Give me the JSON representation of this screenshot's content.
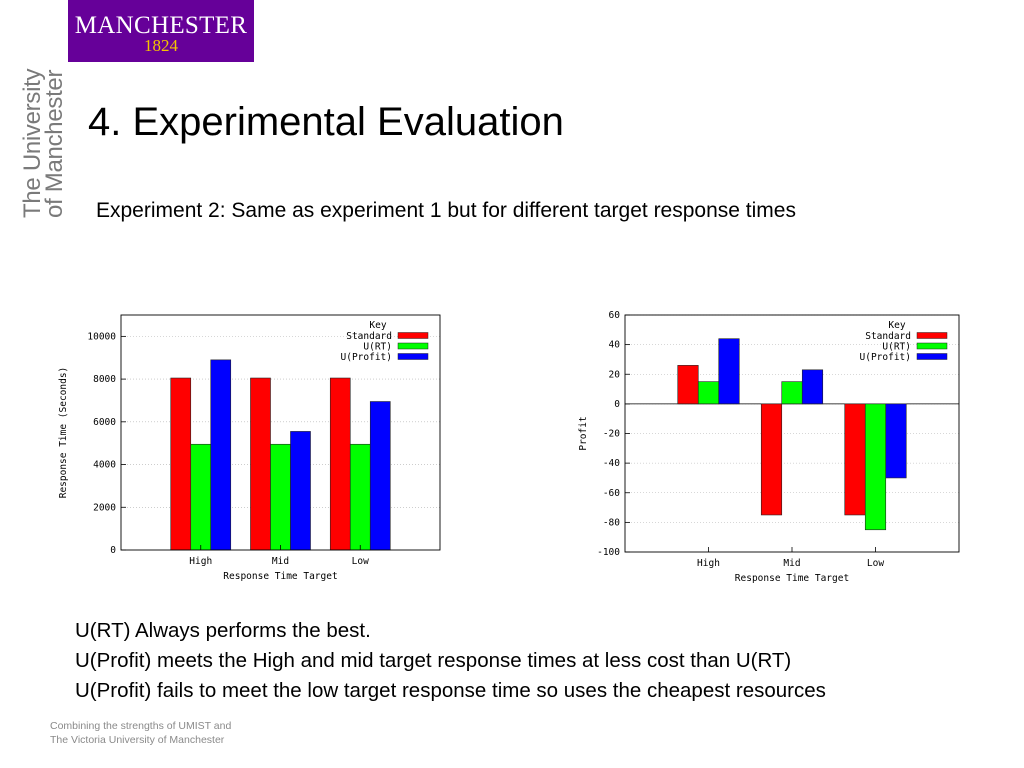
{
  "logo": {
    "line1": "MANCHESTER",
    "line2": "1824"
  },
  "university_text": {
    "line1": "The University",
    "line2": "of Manchester"
  },
  "slide": {
    "title": "4. Experimental Evaluation",
    "subtitle": "Experiment 2: Same as experiment 1 but for different target response times",
    "bullets": [
      "U(RT) Always performs the best.",
      "U(Profit) meets the High and mid target response times at less cost than U(RT)",
      "U(Profit) fails to meet the low target response time so uses the cheapest resources"
    ]
  },
  "footer": {
    "line1": "Combining the strengths of UMIST and",
    "line2": "The Victoria University of Manchester"
  },
  "chart_data": [
    {
      "type": "bar",
      "categories": [
        "High",
        "Mid",
        "Low"
      ],
      "series": [
        {
          "name": "Standard",
          "values": [
            8050,
            8050,
            8050
          ],
          "color": "#ff0000"
        },
        {
          "name": "U(RT)",
          "values": [
            4950,
            4950,
            4950
          ],
          "color": "#00ff00"
        },
        {
          "name": "U(Profit)",
          "values": [
            8900,
            5550,
            6950
          ],
          "color": "#0000ff"
        }
      ],
      "xlabel": "Response Time Target",
      "ylabel": "Response Time (Seconds)",
      "ylim": [
        0,
        11000
      ],
      "yticks": [
        0,
        2000,
        4000,
        6000,
        8000,
        10000
      ],
      "legend_title": "Key",
      "legend_position": "top-right",
      "grid": true
    },
    {
      "type": "bar",
      "categories": [
        "High",
        "Mid",
        "Low"
      ],
      "series": [
        {
          "name": "Standard",
          "values": [
            26,
            -75,
            -75
          ],
          "color": "#ff0000"
        },
        {
          "name": "U(RT)",
          "values": [
            15,
            15,
            -85
          ],
          "color": "#00ff00"
        },
        {
          "name": "U(Profit)",
          "values": [
            44,
            23,
            -50
          ],
          "color": "#0000ff"
        }
      ],
      "xlabel": "Response Time Target",
      "ylabel": "Profit",
      "ylim": [
        -100,
        60
      ],
      "yticks": [
        -100,
        -80,
        -60,
        -40,
        -20,
        0,
        20,
        40,
        60
      ],
      "legend_title": "Key",
      "legend_position": "top-right",
      "grid": true
    }
  ]
}
